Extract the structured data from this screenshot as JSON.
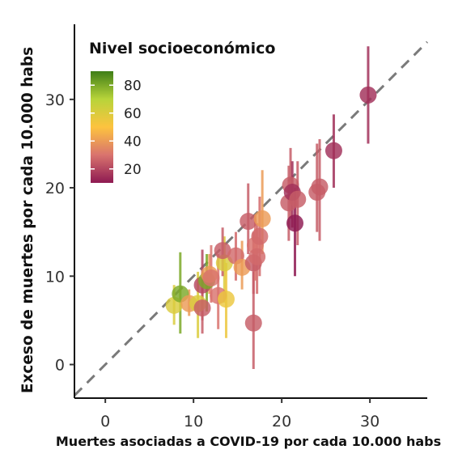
{
  "chart_data": {
    "type": "scatter",
    "xlabel": "Muertes asociadas a COVID-19 por cada 10.000 habs",
    "ylabel": "Exceso de muertes por cada 10.000 habs",
    "xlim": [
      -3.5,
      36.5
    ],
    "ylim": [
      -3.8,
      38.5
    ],
    "x_ticks": [
      "0",
      "10",
      "20",
      "30"
    ],
    "y_ticks": [
      "0",
      "10",
      "20",
      "30"
    ],
    "reference_line": "y = x (dashed)",
    "legend": {
      "title": "Nivel socioeconómico",
      "placement": "top-left",
      "labels": [
        "80",
        "60",
        "40",
        "20"
      ],
      "range": [
        10,
        90
      ],
      "colors": [
        "#3f7e17",
        "#b8d43a",
        "#fdc33f",
        "#d9736e",
        "#8e1a52"
      ]
    },
    "points": [
      {
        "x": 7.8,
        "y": 6.7,
        "lo": 4.5,
        "hi": 9.0,
        "nse": 60
      },
      {
        "x": 8.5,
        "y": 8.0,
        "lo": 3.5,
        "hi": 12.7,
        "nse": 80
      },
      {
        "x": 9.5,
        "y": 6.9,
        "lo": 5.5,
        "hi": 8.5,
        "nse": 40
      },
      {
        "x": 10.5,
        "y": 6.9,
        "lo": 3.0,
        "hi": 10.5,
        "nse": 60
      },
      {
        "x": 11.0,
        "y": 9.0,
        "lo": 5.0,
        "hi": 13.0,
        "nse": 20
      },
      {
        "x": 11.5,
        "y": 9.5,
        "lo": 6.0,
        "hi": 12.5,
        "nse": 80
      },
      {
        "x": 11.8,
        "y": 10.2,
        "lo": 8.0,
        "hi": 12.5,
        "nse": 40
      },
      {
        "x": 11.0,
        "y": 6.4,
        "lo": 3.5,
        "hi": 9.0,
        "nse": 25
      },
      {
        "x": 12.0,
        "y": 9.8,
        "lo": 7.0,
        "hi": 13.5,
        "nse": 30
      },
      {
        "x": 12.8,
        "y": 7.8,
        "lo": 4.0,
        "hi": 12.5,
        "nse": 30
      },
      {
        "x": 13.5,
        "y": 11.5,
        "lo": 7.0,
        "hi": 14.5,
        "nse": 60
      },
      {
        "x": 13.7,
        "y": 7.4,
        "lo": 3.0,
        "hi": 11.5,
        "nse": 55
      },
      {
        "x": 13.3,
        "y": 12.9,
        "lo": 10.0,
        "hi": 15.5,
        "nse": 25
      },
      {
        "x": 14.8,
        "y": 12.3,
        "lo": 9.5,
        "hi": 15.0,
        "nse": 28
      },
      {
        "x": 15.5,
        "y": 11.0,
        "lo": 8.5,
        "hi": 14.0,
        "nse": 40
      },
      {
        "x": 16.2,
        "y": 16.2,
        "lo": 12.5,
        "hi": 20.5,
        "nse": 25
      },
      {
        "x": 16.8,
        "y": 11.5,
        "lo": 8.0,
        "hi": 15.0,
        "nse": 25
      },
      {
        "x": 16.8,
        "y": 4.7,
        "lo": -0.5,
        "hi": 10.5,
        "nse": 25
      },
      {
        "x": 17.0,
        "y": 13.5,
        "lo": 9.5,
        "hi": 17.0,
        "nse": 30
      },
      {
        "x": 17.2,
        "y": 12.2,
        "lo": 8.0,
        "hi": 16.0,
        "nse": 28
      },
      {
        "x": 17.5,
        "y": 14.5,
        "lo": 10.0,
        "hi": 19.0,
        "nse": 28
      },
      {
        "x": 17.8,
        "y": 16.5,
        "lo": 12.5,
        "hi": 22.0,
        "nse": 40
      },
      {
        "x": 20.8,
        "y": 18.3,
        "lo": 14.0,
        "hi": 22.5,
        "nse": 25
      },
      {
        "x": 21.0,
        "y": 20.3,
        "lo": 16.5,
        "hi": 24.5,
        "nse": 25
      },
      {
        "x": 21.2,
        "y": 19.5,
        "lo": 15.5,
        "hi": 23.0,
        "nse": 15
      },
      {
        "x": 21.5,
        "y": 16.0,
        "lo": 10.0,
        "hi": 20.0,
        "nse": 10
      },
      {
        "x": 21.8,
        "y": 18.7,
        "lo": 13.5,
        "hi": 23.0,
        "nse": 25
      },
      {
        "x": 24.0,
        "y": 19.5,
        "lo": 15.0,
        "hi": 25.0,
        "nse": 25
      },
      {
        "x": 24.3,
        "y": 20.1,
        "lo": 14.0,
        "hi": 25.5,
        "nse": 25
      },
      {
        "x": 25.9,
        "y": 24.2,
        "lo": 20.0,
        "hi": 28.3,
        "nse": 15
      },
      {
        "x": 29.8,
        "y": 30.5,
        "lo": 25.0,
        "hi": 36.0,
        "nse": 15
      }
    ]
  }
}
